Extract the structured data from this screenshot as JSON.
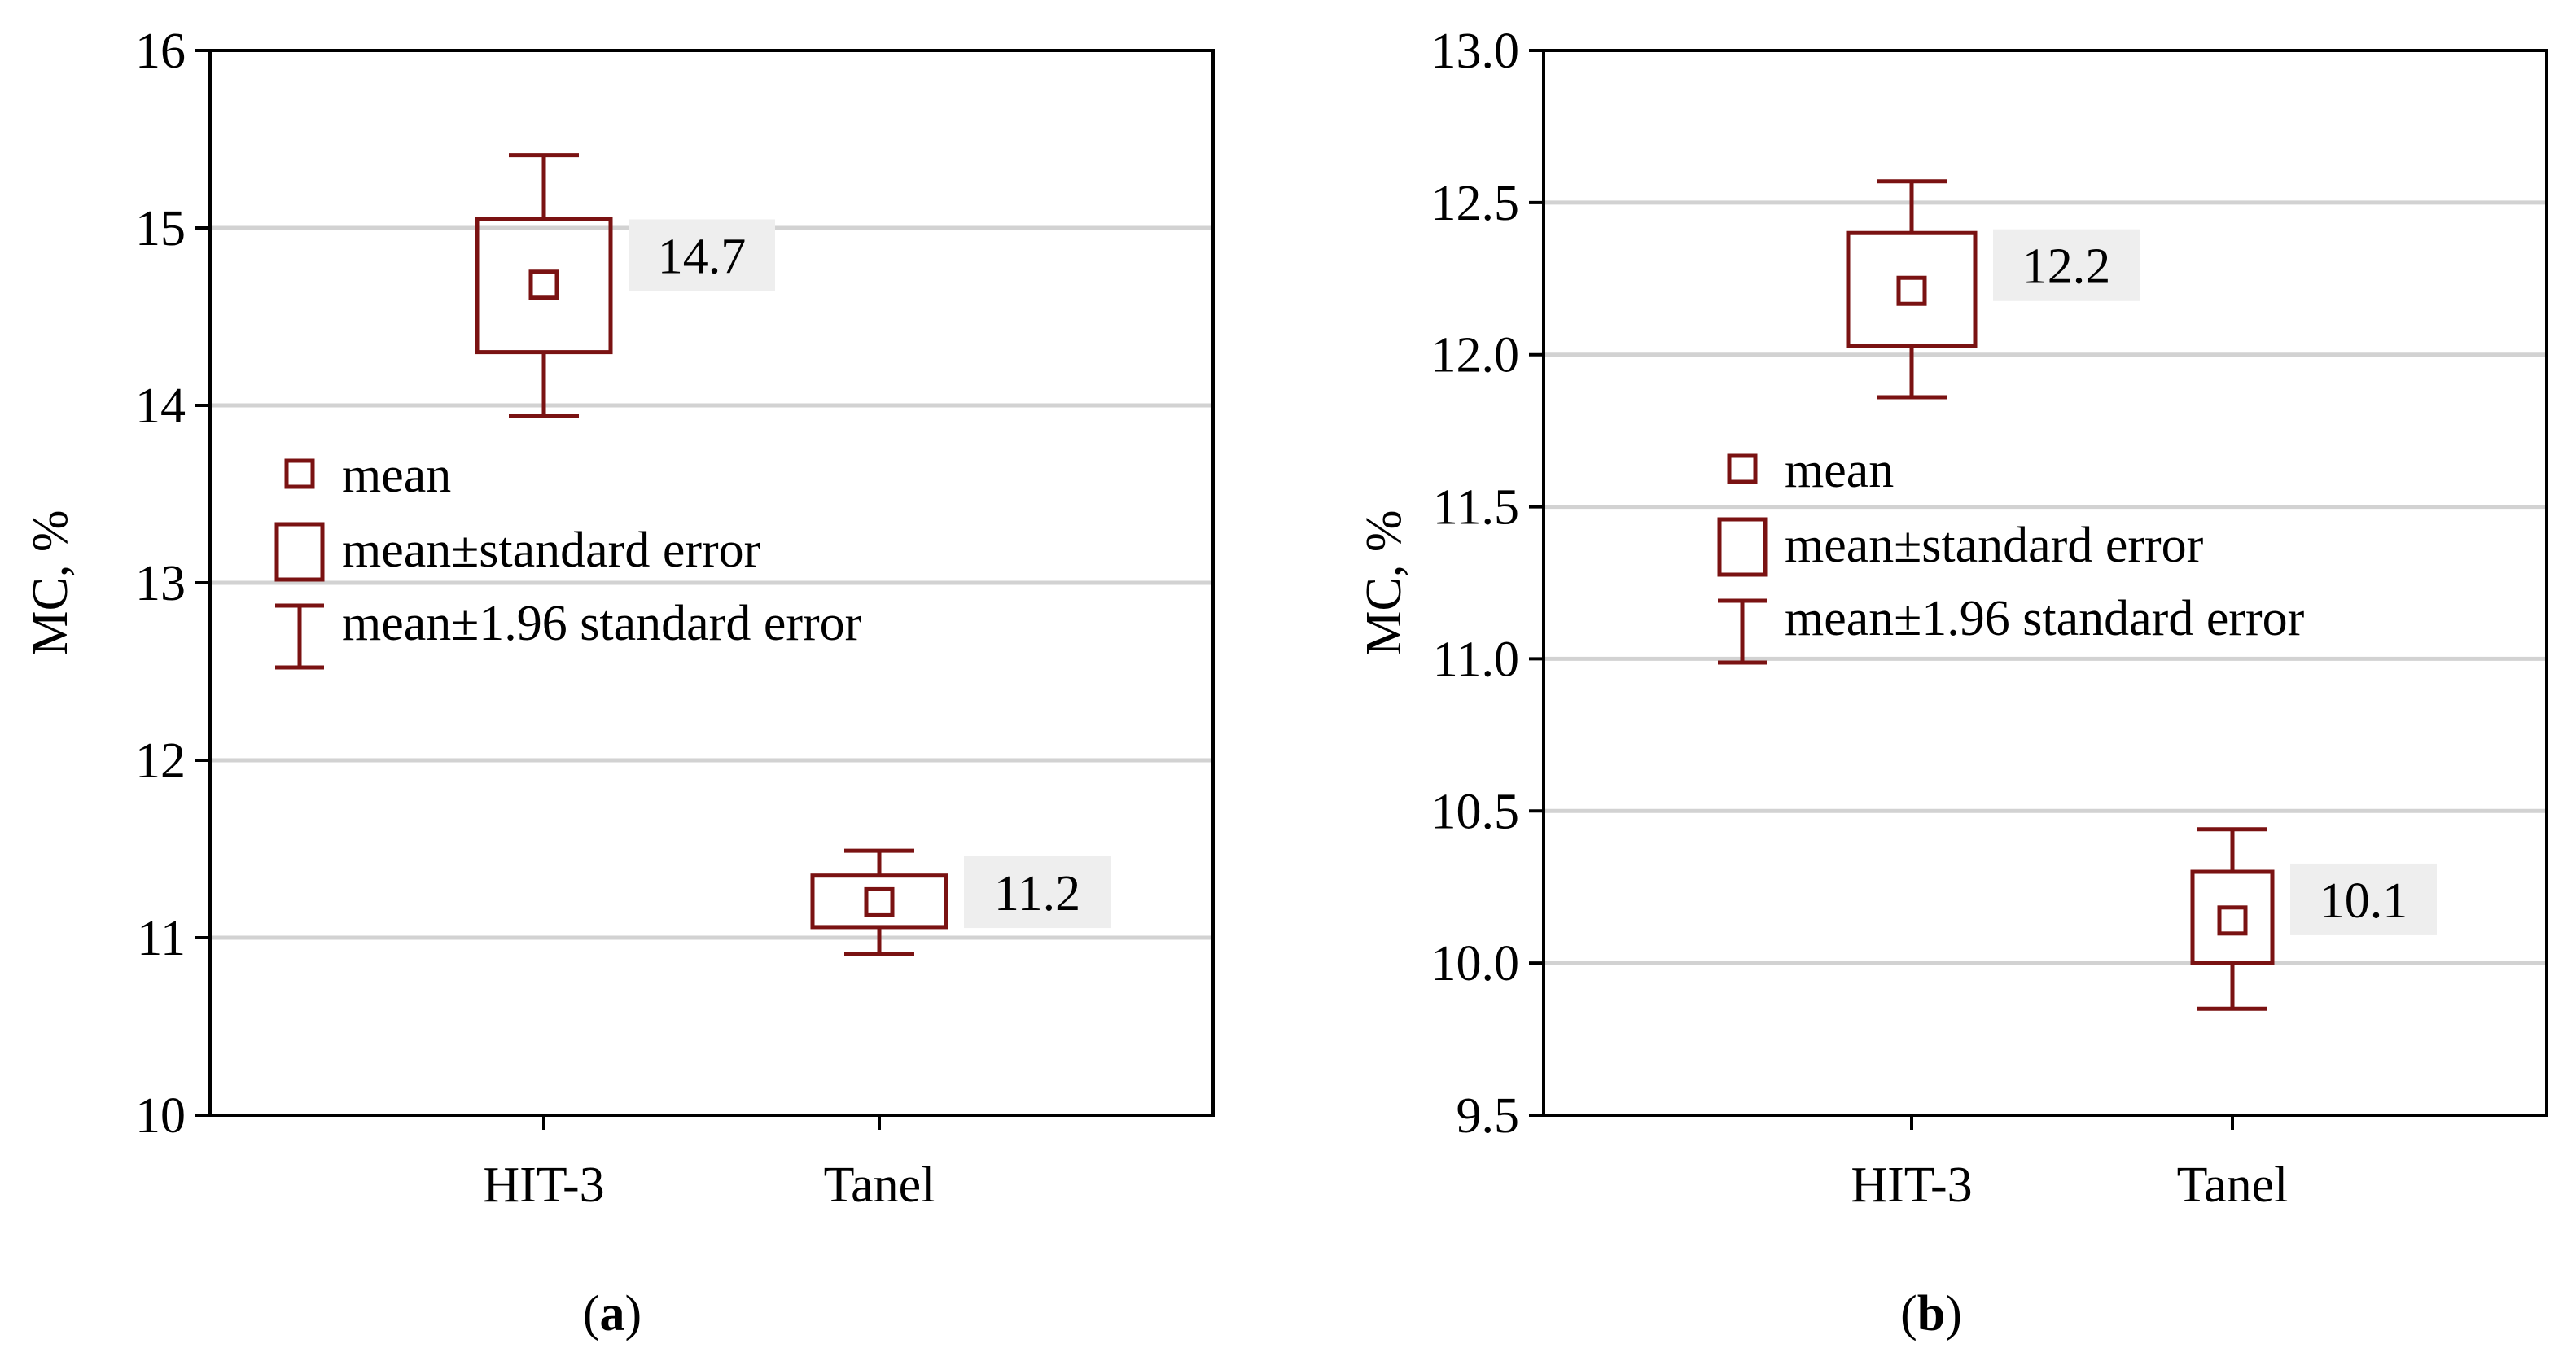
{
  "chart_data": [
    {
      "type": "box",
      "panel_label": "a",
      "ylabel": "MC, %",
      "ylim": [
        10,
        16
      ],
      "yticks": [
        "10",
        "11",
        "12",
        "13",
        "14",
        "15",
        "16"
      ],
      "grid": true,
      "categories": [
        "HIT-3",
        "Tanel"
      ],
      "series": [
        {
          "category": "HIT-3",
          "mean": 14.68,
          "se_low": 14.3,
          "se_high": 15.05,
          "ci_low": 13.94,
          "ci_high": 15.41,
          "label": "14.7"
        },
        {
          "category": "Tanel",
          "mean": 11.2,
          "se_low": 11.06,
          "se_high": 11.35,
          "ci_low": 10.91,
          "ci_high": 11.49,
          "label": "11.2"
        }
      ],
      "legend": {
        "placement": "center-left",
        "entries": [
          "mean",
          "mean±standard error",
          "mean±1.96 standard error"
        ]
      },
      "color": "#7a1212"
    },
    {
      "type": "box",
      "panel_label": "b",
      "ylabel": "MC, %",
      "ylim": [
        9.5,
        13.0
      ],
      "yticks": [
        "9.5",
        "10.0",
        "10.5",
        "11.0",
        "11.5",
        "12.0",
        "12.5",
        "13.0"
      ],
      "grid": true,
      "categories": [
        "HIT-3",
        "Tanel"
      ],
      "series": [
        {
          "category": "HIT-3",
          "mean": 12.21,
          "se_low": 12.03,
          "se_high": 12.4,
          "ci_low": 11.86,
          "ci_high": 12.57,
          "label": "12.2"
        },
        {
          "category": "Tanel",
          "mean": 10.14,
          "se_low": 10.0,
          "se_high": 10.3,
          "ci_low": 9.85,
          "ci_high": 10.44,
          "label": "10.1"
        }
      ],
      "legend": {
        "placement": "center-left",
        "entries": [
          "mean",
          "mean±standard error",
          "mean±1.96 standard error"
        ]
      },
      "color": "#7a1212"
    }
  ]
}
